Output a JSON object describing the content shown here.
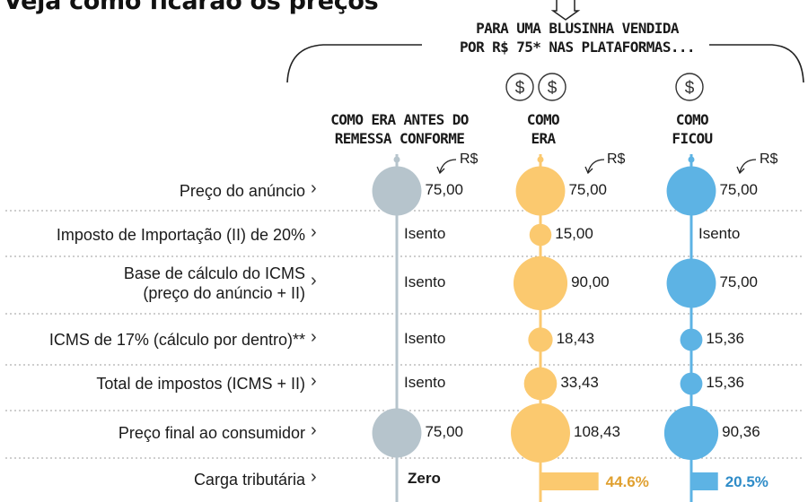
{
  "title": "Veja como ficarão os preços",
  "platform_header": {
    "line1": "PARA UMA BLUSINHA VENDIDA",
    "line2": "POR R$ 75* NAS PLATAFORMAS..."
  },
  "columns": [
    {
      "key": "antes",
      "line1": "COMO ERA ANTES DO",
      "line2": "REMESSA CONFORME",
      "color": "#b6c4cc",
      "unit": "R$",
      "coins": 0
    },
    {
      "key": "era",
      "line1": "COMO",
      "line2": "ERA",
      "color": "#fbc96f",
      "unit": "R$",
      "coins": 2
    },
    {
      "key": "ficou",
      "line1": "COMO",
      "line2": "FICOU",
      "color": "#5db3e4",
      "unit": "R$",
      "coins": 1
    }
  ],
  "coin_symbol": "$",
  "rows": [
    {
      "label": "Preço do anúncio"
    },
    {
      "label": "Imposto de Importação (II) de 20%"
    },
    {
      "label": "Base de cálculo do ICMS",
      "label2": "(preço do anúncio + II)"
    },
    {
      "label": "ICMS de 17% (cálculo por dentro)**"
    },
    {
      "label": "Total de impostos (ICMS + II)"
    },
    {
      "label": "Preço final ao consumidor"
    },
    {
      "label": "Carga tributária"
    }
  ],
  "chev_symbol": "›",
  "chart_data": {
    "type": "bubble",
    "categories": [
      "Preço do anúncio",
      "Imposto de Importação (II) de 20%",
      "Base de cálculo do ICMS (preço do anúncio + II)",
      "ICMS de 17% (cálculo por dentro)**",
      "Total de impostos (ICMS + II)",
      "Preço final ao consumidor"
    ],
    "series": [
      {
        "name": "COMO ERA ANTES DO REMESSA CONFORME",
        "values": [
          75.0,
          null,
          null,
          null,
          null,
          75.0
        ],
        "labels": [
          "75,00",
          "Isento",
          "Isento",
          "Isento",
          "Isento",
          "75,00"
        ],
        "carga": "Zero",
        "carga_value": 0
      },
      {
        "name": "COMO ERA",
        "values": [
          75.0,
          15.0,
          90.0,
          18.43,
          33.43,
          108.43
        ],
        "labels": [
          "75,00",
          "15,00",
          "90,00",
          "18,43",
          "33,43",
          "108,43"
        ],
        "carga": "44.6%",
        "carga_value": 44.6
      },
      {
        "name": "COMO FICOU",
        "values": [
          75.0,
          null,
          75.0,
          15.36,
          15.36,
          90.36
        ],
        "labels": [
          "75,00",
          "Isento",
          "75,00",
          "15,36",
          "15,36",
          "90,36"
        ],
        "carga": "20.5%",
        "carga_value": 20.5
      }
    ],
    "unit": "R$",
    "carga_colors": [
      "#1a1a1a",
      "#e0a030",
      "#2f8cc8"
    ]
  }
}
